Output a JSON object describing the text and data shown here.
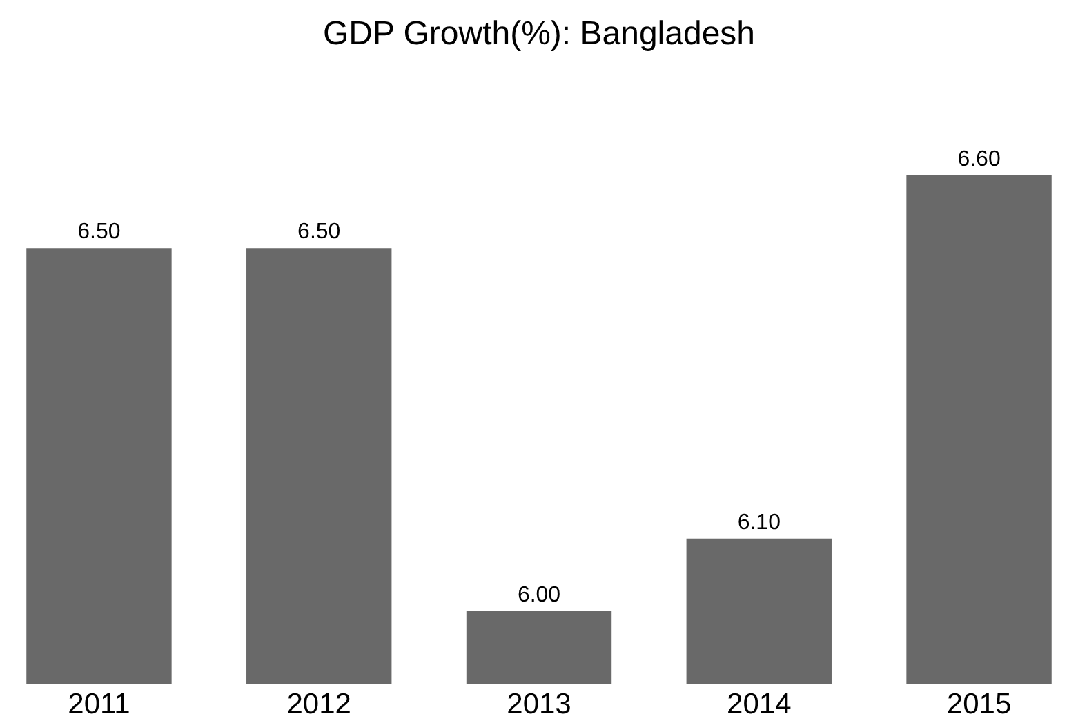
{
  "chart_data": {
    "type": "bar",
    "title": "GDP Growth(%): Bangladesh",
    "categories": [
      "2011",
      "2012",
      "2013",
      "2014",
      "2015"
    ],
    "values": [
      6.5,
      6.5,
      6.0,
      6.1,
      6.6
    ],
    "color": "#696969",
    "ylim": [
      5.9,
      6.6
    ],
    "value_labels": [
      "6.50",
      "6.50",
      "6.00",
      "6.10",
      "6.60"
    ],
    "tick_labels": "x"
  }
}
